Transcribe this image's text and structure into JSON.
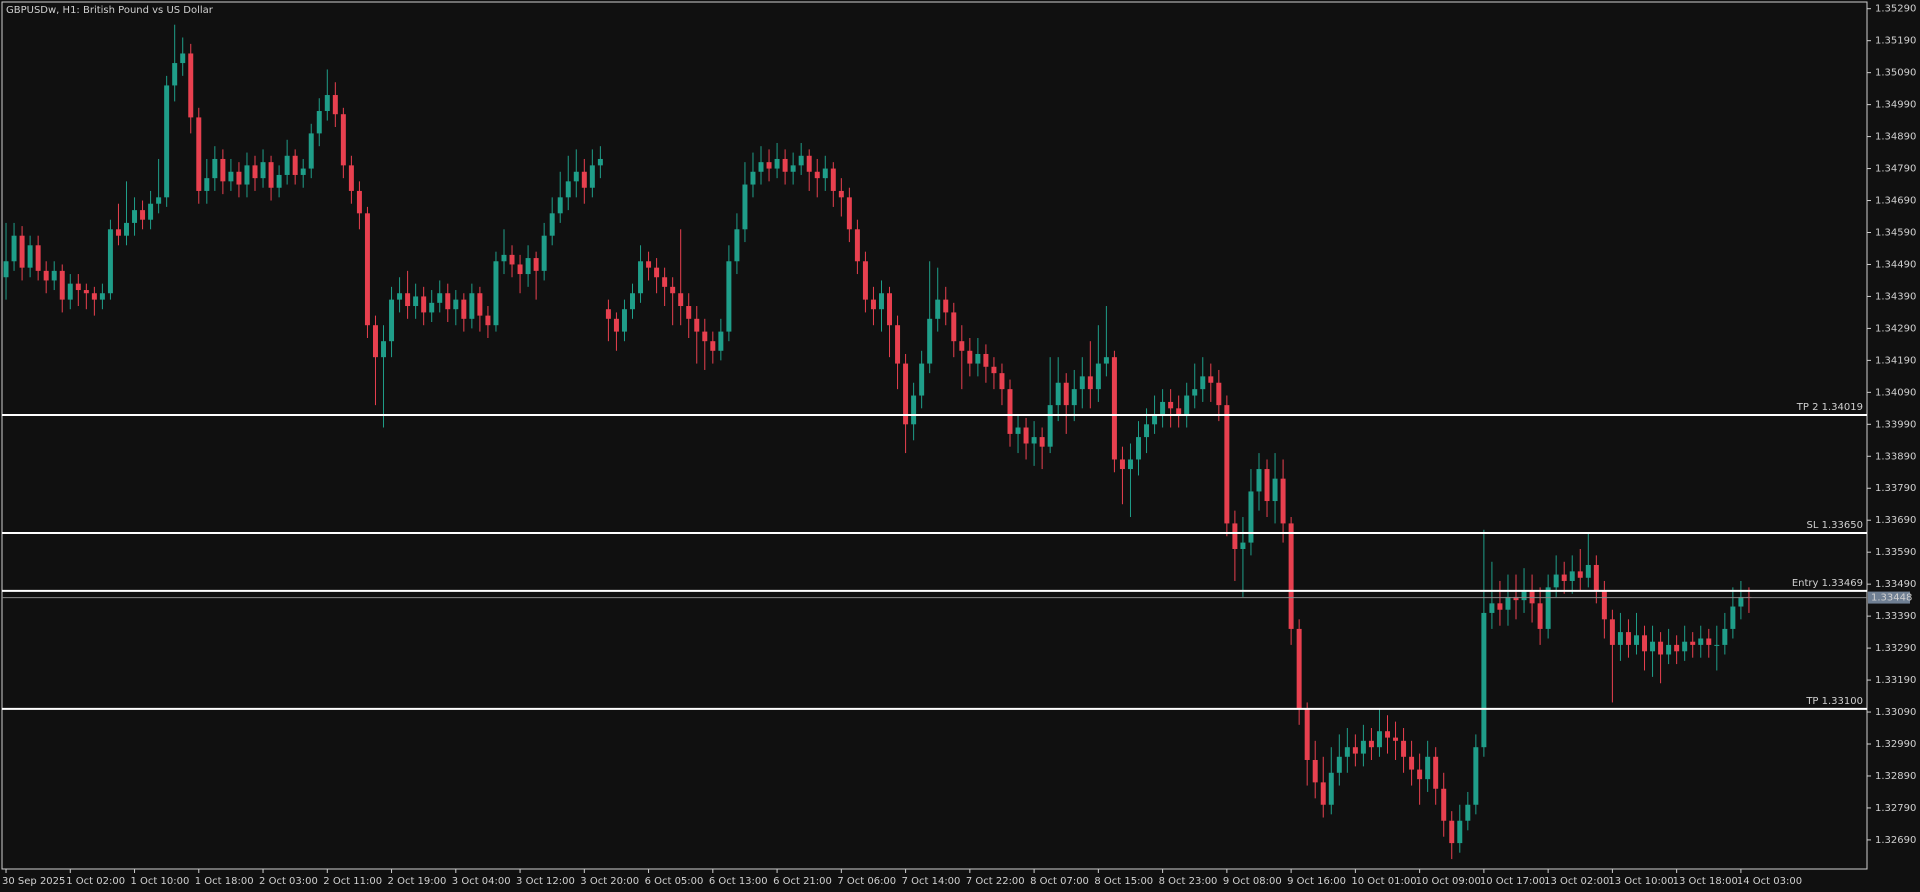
{
  "chart_data": {
    "type": "candlestick",
    "title": "GBPUSDw, H1:  British Pound vs US Dollar",
    "colors": {
      "up": "#1f9e89",
      "down": "#e8404f",
      "level": "#ffffff",
      "bid": "#6f7f93"
    },
    "grid": false,
    "open": [
      1.3445,
      1.345,
      1.3458,
      1.3448,
      1.3455,
      1.3447,
      1.3444,
      1.3447,
      1.3438,
      1.3443,
      1.3441,
      1.344,
      1.3438,
      1.344,
      1.346,
      1.3458,
      1.3462,
      1.3466,
      1.3463,
      1.3468,
      1.347,
      1.3505,
      1.3512,
      1.3515,
      1.3495,
      1.3472,
      1.3476,
      1.3482,
      1.3475,
      1.3478,
      1.3474,
      1.348,
      1.3476,
      1.3481,
      1.3473,
      1.3477,
      1.3483,
      1.3477,
      1.3479,
      1.349,
      1.3497,
      1.3502,
      1.3496,
      1.348,
      1.3472,
      1.3465,
      1.343,
      1.342,
      1.3425,
      1.3438,
      1.344,
      1.3436,
      1.3439,
      1.3434,
      1.3437,
      1.344,
      1.3435,
      1.3438,
      1.3432,
      1.344,
      1.3433,
      1.343,
      1.345,
      1.3452,
      1.3449,
      1.3446,
      1.3451,
      1.3447,
      1.3458,
      1.3465,
      1.347,
      1.3475,
      1.3478,
      1.3473,
      1.348,
      1.3435,
      1.3432,
      1.3428,
      1.3435,
      1.344,
      1.345,
      1.3448,
      1.3445,
      1.3442,
      1.344,
      1.3436,
      1.3432,
      1.3428,
      1.3425,
      1.3422,
      1.3428,
      1.345,
      1.346,
      1.3474,
      1.3478,
      1.3481,
      1.3479,
      1.3482,
      1.3478,
      1.348,
      1.3483,
      1.3478,
      1.3476,
      1.3479,
      1.3472,
      1.347,
      1.346,
      1.345,
      1.3438,
      1.3435,
      1.344,
      1.343,
      1.3418,
      1.3399,
      1.3408,
      1.3418,
      1.3432,
      1.3438,
      1.3434,
      1.3425,
      1.3422,
      1.3418,
      1.3421,
      1.3417,
      1.3415,
      1.341,
      1.3396,
      1.3398,
      1.3393,
      1.3395,
      1.3392,
      1.3405,
      1.3412,
      1.3405,
      1.341,
      1.3414,
      1.341,
      1.3418,
      1.342,
      1.3388,
      1.3385,
      1.3388,
      1.3395,
      1.3399,
      1.3402,
      1.3406,
      1.3404,
      1.3402,
      1.3408,
      1.341,
      1.3414,
      1.3412,
      1.3405,
      1.3368,
      1.336,
      1.3362,
      1.3378,
      1.3385,
      1.3375,
      1.3382,
      1.3368,
      1.3335,
      1.331,
      1.3294,
      1.3287,
      1.328,
      1.329,
      1.3295,
      1.3298,
      1.3296,
      1.33,
      1.3298,
      1.3303,
      1.3301,
      1.33,
      1.3295,
      1.3291,
      1.3288,
      1.3295,
      1.3285,
      1.3275,
      1.3268,
      1.3275,
      1.328,
      1.3298,
      1.334,
      1.3343,
      1.3341,
      1.3345,
      1.3344,
      1.3347,
      1.3343,
      1.3335,
      1.3348,
      1.3352,
      1.335,
      1.3353,
      1.3351,
      1.3355,
      1.3347,
      1.3338,
      1.333,
      1.3334,
      1.333,
      1.3333,
      1.3328,
      1.3331,
      1.3327,
      1.333,
      1.3328,
      1.3331,
      1.333,
      1.3332,
      1.333,
      1.333,
      1.3335,
      1.3342,
      1.3345
    ],
    "high": [
      1.3462,
      1.3462,
      1.3461,
      1.3458,
      1.3458,
      1.345,
      1.345,
      1.3449,
      1.3446,
      1.3446,
      1.3443,
      1.3442,
      1.3443,
      1.3463,
      1.3468,
      1.3475,
      1.347,
      1.3469,
      1.3472,
      1.3482,
      1.3508,
      1.3524,
      1.352,
      1.3518,
      1.3498,
      1.3482,
      1.3486,
      1.3485,
      1.3482,
      1.3481,
      1.3484,
      1.3483,
      1.3485,
      1.3483,
      1.348,
      1.3488,
      1.3485,
      1.3482,
      1.3493,
      1.3501,
      1.351,
      1.3506,
      1.3498,
      1.3483,
      1.3475,
      1.3467,
      1.3433,
      1.343,
      1.3442,
      1.3445,
      1.3447,
      1.3443,
      1.3442,
      1.3441,
      1.3444,
      1.3443,
      1.3441,
      1.344,
      1.3443,
      1.3442,
      1.3436,
      1.3453,
      1.346,
      1.3455,
      1.3452,
      1.3455,
      1.3453,
      1.3462,
      1.347,
      1.3478,
      1.3483,
      1.3485,
      1.3482,
      1.3485,
      1.3486,
      1.3438,
      1.3434,
      1.3438,
      1.3443,
      1.3455,
      1.3453,
      1.3451,
      1.3448,
      1.3445,
      1.346,
      1.344,
      1.3436,
      1.3432,
      1.3428,
      1.3432,
      1.3455,
      1.3465,
      1.3481,
      1.3484,
      1.3486,
      1.3485,
      1.3487,
      1.3485,
      1.3484,
      1.3487,
      1.3485,
      1.3482,
      1.3483,
      1.3481,
      1.3476,
      1.3473,
      1.3463,
      1.3453,
      1.3442,
      1.3444,
      1.3442,
      1.3433,
      1.3421,
      1.3412,
      1.3422,
      1.345,
      1.3448,
      1.3442,
      1.3437,
      1.343,
      1.3426,
      1.3426,
      1.3424,
      1.342,
      1.3418,
      1.3413,
      1.3402,
      1.3401,
      1.34,
      1.3398,
      1.342,
      1.342,
      1.3415,
      1.3416,
      1.342,
      1.3425,
      1.343,
      1.3436,
      1.3422,
      1.3392,
      1.3393,
      1.34,
      1.3404,
      1.3408,
      1.341,
      1.341,
      1.3408,
      1.3412,
      1.3418,
      1.342,
      1.3418,
      1.3416,
      1.3408,
      1.3372,
      1.337,
      1.3385,
      1.339,
      1.3388,
      1.339,
      1.3388,
      1.337,
      1.3338,
      1.3312,
      1.33,
      1.3295,
      1.3298,
      1.3302,
      1.3304,
      1.3302,
      1.3305,
      1.3304,
      1.331,
      1.3308,
      1.3306,
      1.3304,
      1.33,
      1.3296,
      1.33,
      1.3298,
      1.329,
      1.3278,
      1.328,
      1.3284,
      1.3302,
      1.3366,
      1.3356,
      1.335,
      1.3352,
      1.3352,
      1.3354,
      1.3352,
      1.3348,
      1.3352,
      1.3358,
      1.3356,
      1.3358,
      1.336,
      1.3365,
      1.3358,
      1.335,
      1.3341,
      1.334,
      1.3338,
      1.334,
      1.3336,
      1.3336,
      1.3334,
      1.3335,
      1.3333,
      1.3336,
      1.3334,
      1.3336,
      1.3335,
      1.3336,
      1.334,
      1.3348,
      1.335,
      1.3348
    ],
    "low": [
      1.3438,
      1.3447,
      1.3444,
      1.3445,
      1.3444,
      1.344,
      1.3441,
      1.3434,
      1.3435,
      1.3436,
      1.3435,
      1.3433,
      1.3435,
      1.3438,
      1.3455,
      1.3455,
      1.3458,
      1.346,
      1.346,
      1.3465,
      1.3467,
      1.35,
      1.3508,
      1.349,
      1.3468,
      1.3468,
      1.3472,
      1.3471,
      1.3472,
      1.347,
      1.347,
      1.3472,
      1.3473,
      1.3469,
      1.347,
      1.3474,
      1.3474,
      1.3473,
      1.3476,
      1.3486,
      1.3494,
      1.3492,
      1.3476,
      1.3468,
      1.346,
      1.3426,
      1.3405,
      1.3398,
      1.342,
      1.3434,
      1.3432,
      1.3432,
      1.343,
      1.3431,
      1.3434,
      1.3431,
      1.343,
      1.3428,
      1.3429,
      1.3428,
      1.3426,
      1.3428,
      1.3446,
      1.3445,
      1.344,
      1.3442,
      1.3438,
      1.3444,
      1.3455,
      1.3462,
      1.3466,
      1.347,
      1.3468,
      1.347,
      1.3476,
      1.3425,
      1.3422,
      1.3425,
      1.3432,
      1.3437,
      1.3444,
      1.344,
      1.3436,
      1.343,
      1.343,
      1.3426,
      1.3418,
      1.3416,
      1.3418,
      1.3419,
      1.3425,
      1.3446,
      1.3456,
      1.347,
      1.3474,
      1.3475,
      1.3476,
      1.3474,
      1.3474,
      1.3477,
      1.3472,
      1.347,
      1.3472,
      1.3467,
      1.3464,
      1.3456,
      1.3446,
      1.3434,
      1.343,
      1.3428,
      1.342,
      1.341,
      1.339,
      1.3394,
      1.3404,
      1.3415,
      1.3428,
      1.343,
      1.342,
      1.341,
      1.3414,
      1.3414,
      1.3412,
      1.341,
      1.3405,
      1.3392,
      1.339,
      1.3388,
      1.3386,
      1.3385,
      1.339,
      1.34,
      1.3396,
      1.34,
      1.3404,
      1.3404,
      1.3406,
      1.3414,
      1.3384,
      1.3374,
      1.337,
      1.3383,
      1.339,
      1.3396,
      1.3398,
      1.3398,
      1.3398,
      1.3398,
      1.3404,
      1.3406,
      1.3406,
      1.34,
      1.3364,
      1.335,
      1.3345,
      1.3358,
      1.3372,
      1.337,
      1.3368,
      1.3362,
      1.333,
      1.3305,
      1.3286,
      1.3282,
      1.3276,
      1.3277,
      1.3286,
      1.329,
      1.3292,
      1.3292,
      1.3294,
      1.3295,
      1.3296,
      1.3294,
      1.329,
      1.3286,
      1.328,
      1.3284,
      1.328,
      1.327,
      1.3263,
      1.3265,
      1.3272,
      1.3277,
      1.3295,
      1.3335,
      1.3336,
      1.3336,
      1.3338,
      1.334,
      1.3337,
      1.333,
      1.3332,
      1.3345,
      1.3346,
      1.3346,
      1.3347,
      1.3348,
      1.3343,
      1.3332,
      1.3312,
      1.3325,
      1.3326,
      1.3327,
      1.3322,
      1.332,
      1.3318,
      1.3324,
      1.3324,
      1.3325,
      1.3326,
      1.3326,
      1.3326,
      1.3322,
      1.3327,
      1.3332,
      1.3338,
      1.334
    ],
    "close": [
      1.345,
      1.3458,
      1.3448,
      1.3455,
      1.3447,
      1.3444,
      1.3447,
      1.3438,
      1.3443,
      1.3441,
      1.344,
      1.3438,
      1.344,
      1.346,
      1.3458,
      1.3462,
      1.3466,
      1.3463,
      1.3468,
      1.347,
      1.3505,
      1.3512,
      1.3515,
      1.3495,
      1.3472,
      1.3476,
      1.3482,
      1.3475,
      1.3478,
      1.3474,
      1.348,
      1.3476,
      1.3481,
      1.3473,
      1.3477,
      1.3483,
      1.3477,
      1.3479,
      1.349,
      1.3497,
      1.3502,
      1.3496,
      1.348,
      1.3472,
      1.3465,
      1.343,
      1.342,
      1.3425,
      1.3438,
      1.344,
      1.3436,
      1.3439,
      1.3434,
      1.3437,
      1.344,
      1.3435,
      1.3438,
      1.3432,
      1.344,
      1.3433,
      1.343,
      1.345,
      1.3452,
      1.3449,
      1.3446,
      1.3451,
      1.3447,
      1.3458,
      1.3465,
      1.347,
      1.3475,
      1.3478,
      1.3473,
      1.348,
      1.3482,
      1.3432,
      1.3428,
      1.3435,
      1.344,
      1.345,
      1.3448,
      1.3445,
      1.3442,
      1.344,
      1.3436,
      1.3432,
      1.3428,
      1.3425,
      1.3422,
      1.3428,
      1.345,
      1.346,
      1.3474,
      1.3478,
      1.3481,
      1.3479,
      1.3482,
      1.3478,
      1.348,
      1.3483,
      1.3478,
      1.3476,
      1.3479,
      1.3472,
      1.347,
      1.346,
      1.345,
      1.3438,
      1.3435,
      1.344,
      1.343,
      1.3418,
      1.3399,
      1.3408,
      1.3418,
      1.3432,
      1.3438,
      1.3434,
      1.3425,
      1.3422,
      1.3418,
      1.3421,
      1.3417,
      1.3415,
      1.341,
      1.3396,
      1.3398,
      1.3393,
      1.3395,
      1.3392,
      1.3405,
      1.3412,
      1.3405,
      1.341,
      1.3414,
      1.341,
      1.3418,
      1.342,
      1.3388,
      1.3385,
      1.3388,
      1.3395,
      1.3399,
      1.3402,
      1.3406,
      1.3404,
      1.3402,
      1.3408,
      1.341,
      1.3414,
      1.3412,
      1.3405,
      1.3368,
      1.336,
      1.3362,
      1.3378,
      1.3385,
      1.3375,
      1.3382,
      1.3368,
      1.3335,
      1.331,
      1.3294,
      1.3287,
      1.328,
      1.329,
      1.3295,
      1.3298,
      1.3296,
      1.33,
      1.3298,
      1.3303,
      1.3301,
      1.33,
      1.3295,
      1.3291,
      1.3288,
      1.3295,
      1.3285,
      1.3275,
      1.3268,
      1.3275,
      1.328,
      1.3298,
      1.334,
      1.3343,
      1.3341,
      1.3345,
      1.3344,
      1.3347,
      1.3343,
      1.3335,
      1.3348,
      1.3352,
      1.335,
      1.3353,
      1.3351,
      1.3355,
      1.3347,
      1.3338,
      1.333,
      1.3334,
      1.333,
      1.3333,
      1.3328,
      1.3331,
      1.3327,
      1.333,
      1.3328,
      1.3331,
      1.333,
      1.3332,
      1.333,
      1.333,
      1.3335,
      1.3342,
      1.3345,
      1.33448
    ],
    "xlim": [
      -0.5,
      231.7
    ],
    "xticks": [
      {
        "value": 0,
        "label": "30 Sep 2025"
      },
      {
        "value": 8,
        "label": "1 Oct 02:00"
      },
      {
        "value": 16,
        "label": "1 Oct 10:00"
      },
      {
        "value": 24,
        "label": "1 Oct 18:00"
      },
      {
        "value": 32,
        "label": "2 Oct 03:00"
      },
      {
        "value": 40,
        "label": "2 Oct 11:00"
      },
      {
        "value": 48,
        "label": "2 Oct 19:00"
      },
      {
        "value": 56,
        "label": "3 Oct 04:00"
      },
      {
        "value": 64,
        "label": "3 Oct 12:00"
      },
      {
        "value": 72,
        "label": "3 Oct 20:00"
      },
      {
        "value": 80,
        "label": "6 Oct 05:00"
      },
      {
        "value": 88,
        "label": "6 Oct 13:00"
      },
      {
        "value": 96,
        "label": "6 Oct 21:00"
      },
      {
        "value": 104,
        "label": "7 Oct 06:00"
      },
      {
        "value": 112,
        "label": "7 Oct 14:00"
      },
      {
        "value": 120,
        "label": "7 Oct 22:00"
      },
      {
        "value": 128,
        "label": "8 Oct 07:00"
      },
      {
        "value": 136,
        "label": "8 Oct 15:00"
      },
      {
        "value": 144,
        "label": "8 Oct 23:00"
      },
      {
        "value": 152,
        "label": "9 Oct 08:00"
      },
      {
        "value": 160,
        "label": "9 Oct 16:00"
      },
      {
        "value": 168,
        "label": "10 Oct 01:00"
      },
      {
        "value": 176,
        "label": "10 Oct 09:00"
      },
      {
        "value": 184,
        "label": "10 Oct 17:00"
      },
      {
        "value": 192,
        "label": "13 Oct 02:00"
      },
      {
        "value": 200,
        "label": "13 Oct 10:00"
      },
      {
        "value": 208,
        "label": "13 Oct 18:00"
      },
      {
        "value": 216,
        "label": "14 Oct 03:00"
      }
    ],
    "ylim": [
      1.32599,
      1.35311
    ],
    "yticks": [
      {
        "value": 1.3529,
        "label": "1.35290"
      },
      {
        "value": 1.3519,
        "label": "1.35190"
      },
      {
        "value": 1.3509,
        "label": "1.35090"
      },
      {
        "value": 1.3499,
        "label": "1.34990"
      },
      {
        "value": 1.3489,
        "label": "1.34890"
      },
      {
        "value": 1.3479,
        "label": "1.34790"
      },
      {
        "value": 1.3469,
        "label": "1.34690"
      },
      {
        "value": 1.3459,
        "label": "1.34590"
      },
      {
        "value": 1.3449,
        "label": "1.34490"
      },
      {
        "value": 1.3439,
        "label": "1.34390"
      },
      {
        "value": 1.3429,
        "label": "1.34290"
      },
      {
        "value": 1.3419,
        "label": "1.34190"
      },
      {
        "value": 1.3409,
        "label": "1.34090"
      },
      {
        "value": 1.3399,
        "label": "1.33990"
      },
      {
        "value": 1.3389,
        "label": "1.33890"
      },
      {
        "value": 1.3379,
        "label": "1.33790"
      },
      {
        "value": 1.3369,
        "label": "1.33690"
      },
      {
        "value": 1.3359,
        "label": "1.33590"
      },
      {
        "value": 1.3349,
        "label": "1.33490"
      },
      {
        "value": 1.3339,
        "label": "1.33390"
      },
      {
        "value": 1.3329,
        "label": "1.33290"
      },
      {
        "value": 1.3319,
        "label": "1.33190"
      },
      {
        "value": 1.3309,
        "label": "1.33090"
      },
      {
        "value": 1.3299,
        "label": "1.32990"
      },
      {
        "value": 1.3289,
        "label": "1.32890"
      },
      {
        "value": 1.3279,
        "label": "1.32790"
      },
      {
        "value": 1.3269,
        "label": "1.32690"
      }
    ],
    "levels": [
      {
        "value": 1.34019,
        "label": "TP 2 1.34019"
      },
      {
        "value": 1.3365,
        "label": "SL 1.33650"
      },
      {
        "value": 1.33469,
        "label": "Entry 1.33469"
      },
      {
        "value": 1.331,
        "label": "TP 1.33100"
      }
    ],
    "bid": 1.33448
  }
}
